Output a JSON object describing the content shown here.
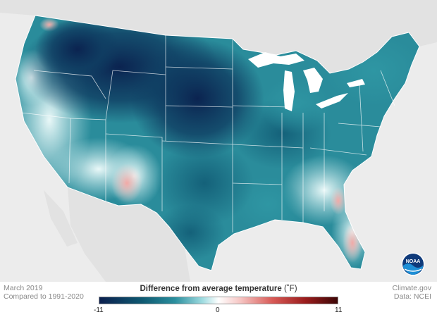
{
  "map": {
    "date": "March 2019",
    "baseline": "Compared to 1991-2020",
    "credit": "Climate.gov",
    "source": "Data: NCEI",
    "logo_text": "NOAA"
  },
  "legend": {
    "title": "Difference from average temperature",
    "unit": "(˚F)",
    "min_label": "-11",
    "zero_label": "0",
    "max_label": "11",
    "range": [
      -11,
      11
    ],
    "stops": [
      {
        "value": -11,
        "color": "#0b1f4e"
      },
      {
        "value": -7,
        "color": "#0f5a72"
      },
      {
        "value": -4,
        "color": "#2b8f9e"
      },
      {
        "value": -1.5,
        "color": "#9edbe0"
      },
      {
        "value": 0,
        "color": "#ffffff"
      },
      {
        "value": 2,
        "color": "#f6c6c4"
      },
      {
        "value": 5,
        "color": "#d85a56"
      },
      {
        "value": 8,
        "color": "#9b1d1d"
      },
      {
        "value": 11,
        "color": "#3d0606"
      }
    ]
  },
  "colors": {
    "background_land": "#e2e2e2",
    "water": "#ffffff",
    "state_borders": "#ffffff"
  }
}
